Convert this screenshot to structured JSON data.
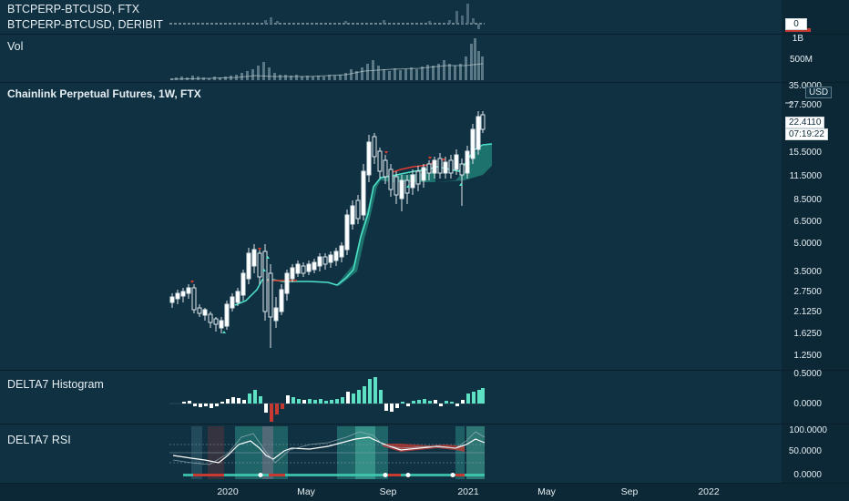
{
  "panes": {
    "compare1": "BTCPERP-BTCUSD, FTX",
    "compare2": "BTCPERP-BTCUSD, DERIBIT",
    "vol": "Vol",
    "main": "Chainlink Perpetual Futures, 1W, FTX",
    "hist": "DELTA7 Histogram",
    "rsi": "DELTA7 RSI"
  },
  "axis": {
    "compare_badge": "0",
    "vol_ticks": [
      "1B",
      "500M"
    ],
    "currency": "USD",
    "price_ticks": [
      "35.0000",
      "27.5000",
      "15.5000",
      "11.5000",
      "8.5000",
      "6.5000",
      "5.0000",
      "3.5000",
      "2.7500",
      "2.1250",
      "1.6250",
      "1.2500"
    ],
    "last_price": "22.4110",
    "countdown": "07:19:22",
    "hist_ticks": [
      "0.5000",
      "0.0000"
    ],
    "rsi_ticks": [
      "100.0000",
      "50.0000",
      "0.0000"
    ]
  },
  "time_axis": [
    "2020",
    "May",
    "Sep",
    "2021",
    "May",
    "Sep",
    "2022"
  ],
  "colors": {
    "background": "#0f3142",
    "candle_up": "#ffffff",
    "trail_line": "#4fe3c9",
    "trail_red": "#e03c31",
    "hist_up": "#5ee0c4",
    "hist_down": "#c73a32",
    "rsi_band": "#3ec9b0"
  },
  "icons": [
    "sell-marker-icon",
    "buy-marker-icon"
  ]
}
